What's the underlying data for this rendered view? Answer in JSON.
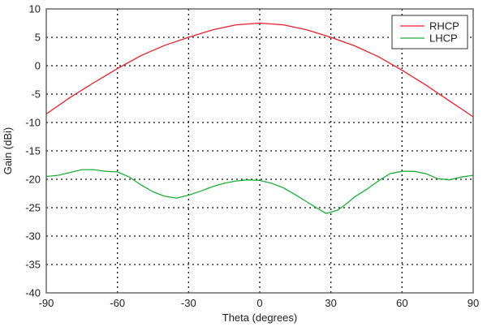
{
  "chart_data": {
    "type": "line",
    "title": "",
    "xlabel": "Theta (degrees)",
    "ylabel": "Gain (dBi)",
    "xlim": [
      -90,
      90
    ],
    "ylim": [
      -40,
      10
    ],
    "xticks": [
      -90,
      -60,
      -30,
      0,
      30,
      60,
      90
    ],
    "yticks": [
      10,
      5,
      0,
      -5,
      -10,
      -15,
      -20,
      -25,
      -30,
      -35,
      -40
    ],
    "grid": true,
    "legend": "top-right",
    "series": [
      {
        "name": "RHCP",
        "color": "#e8202a",
        "x": [
          -90,
          -80,
          -70,
          -60,
          -50,
          -40,
          -30,
          -20,
          -10,
          0,
          10,
          20,
          30,
          40,
          50,
          60,
          70,
          80,
          90
        ],
        "y": [
          -8.5,
          -5.6,
          -3,
          -0.5,
          1.8,
          3.6,
          5,
          6.3,
          7.2,
          7.5,
          7.2,
          6.3,
          5,
          3.5,
          1.6,
          -0.8,
          -3.4,
          -6.2,
          -9
        ]
      },
      {
        "name": "LHCP",
        "color": "#1fae3c",
        "x": [
          -90,
          -85,
          -80,
          -75,
          -70,
          -65,
          -60,
          -55,
          -50,
          -45,
          -40,
          -35,
          -30,
          -25,
          -20,
          -15,
          -10,
          -5,
          0,
          5,
          10,
          15,
          20,
          25,
          28,
          30,
          33,
          36,
          40,
          45,
          50,
          55,
          60,
          65,
          70,
          75,
          80,
          85,
          90
        ],
        "y": [
          -19.5,
          -19.3,
          -18.8,
          -18.3,
          -18.3,
          -18.6,
          -18.7,
          -19.6,
          -21,
          -22.2,
          -23,
          -23.3,
          -22.8,
          -22.1,
          -21.3,
          -20.7,
          -20.3,
          -20.1,
          -20.2,
          -20.7,
          -21.5,
          -22.7,
          -24,
          -25.3,
          -26,
          -25.8,
          -25.4,
          -24.5,
          -23.1,
          -21.8,
          -20.3,
          -19,
          -18.6,
          -18.6,
          -19,
          -19.9,
          -20.1,
          -19.6,
          -19.3
        ]
      }
    ]
  }
}
